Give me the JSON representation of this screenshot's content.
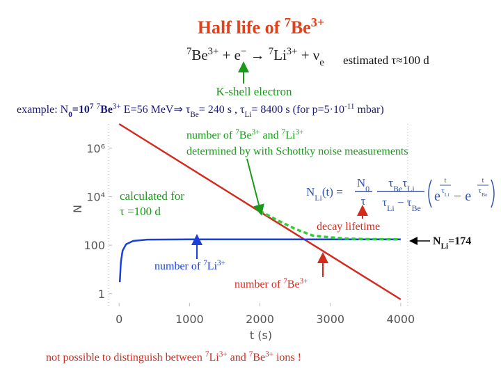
{
  "chart_data": {
    "type": "line",
    "xlabel": "t (s)",
    "ylabel": "N",
    "xlim": [
      -150,
      4100
    ],
    "ylim": [
      0.3,
      10000000
    ],
    "log_y": true,
    "xticks": [
      0,
      1000,
      2000,
      3000,
      4000
    ],
    "yticks": [
      1,
      100,
      {
        "value": 10000,
        "label": "10⁴"
      },
      {
        "value": 1000000,
        "label": "10⁶"
      }
    ],
    "series": [
      {
        "color": "#d42a1e",
        "x": [
          0,
          500,
          1000,
          1500,
          2000,
          2500,
          3000,
          3500,
          4000
        ],
        "values": [
          10000000,
          1245000,
          155000,
          19300,
          2400,
          299,
          37.3,
          4.64,
          0.58
        ]
      },
      {
        "color": "#1c3fd8",
        "x": [
          10,
          25,
          50,
          100,
          200,
          400,
          1000,
          2000,
          3000,
          4000
        ],
        "values": [
          3,
          20,
          60,
          110,
          150,
          170,
          174,
          174,
          174,
          174
        ]
      },
      {
        "color": "#33cc33",
        "dashed": true,
        "x": [
          2000,
          2250,
          2500,
          2750,
          3000,
          3250,
          3500,
          4000
        ],
        "values": [
          2600,
          1060,
          470,
          250,
          210,
          185,
          178,
          174
        ]
      }
    ]
  },
  "slide": {
    "title": [
      "Half life of ",
      "7",
      "Be",
      "3+"
    ],
    "reaction": [
      "7",
      "Be",
      "3+",
      " + e",
      "−",
      " → ",
      "7",
      "Li",
      "3+",
      " + ν",
      "e"
    ],
    "estimated": "estimated τ≈100 d",
    "kshell": "K-shell electron",
    "example": [
      "example: N",
      "0",
      "=10",
      "7",
      "  ",
      "7",
      "Be",
      "3+",
      "  E=56 MeV⇒ τ",
      "Be",
      "= 240 s , τ",
      "Li",
      "= 8400 s  (for p=5·10",
      "-11",
      " mbar)"
    ],
    "schottky1": [
      "number of ",
      "7",
      "Be",
      "3+",
      " and ",
      "7",
      "Li",
      "3+"
    ],
    "schottky2": "determined by with Schottky noise measurements",
    "calc1": "calculated for",
    "calc2": "τ =100 d",
    "formula": {
      "lhs": [
        "N",
        "Li",
        "(t) ="
      ],
      "n1": [
        "N",
        "0"
      ],
      "d1": "τ",
      "n2": [
        "τ",
        "Be",
        "τ",
        "Li"
      ],
      "d2": [
        "τ",
        "Li",
        " − τ",
        "Be"
      ],
      "e1": [
        "e",
        "t",
        "τ",
        "Li"
      ],
      "minus": "− e",
      "e2": [
        "t",
        "τ",
        "Be"
      ]
    },
    "decay": "decay lifetime",
    "nli": [
      "N",
      "Li",
      "=174"
    ],
    "li_label": [
      "number of ",
      "7",
      "Li",
      "3+"
    ],
    "be_label": [
      "number of ",
      "7",
      "Be",
      "3+"
    ],
    "bottom": [
      "not possible to distinguish between ",
      "7",
      "Li",
      "3+",
      " and ",
      "7",
      "Be",
      "3+",
      " ions !"
    ]
  }
}
